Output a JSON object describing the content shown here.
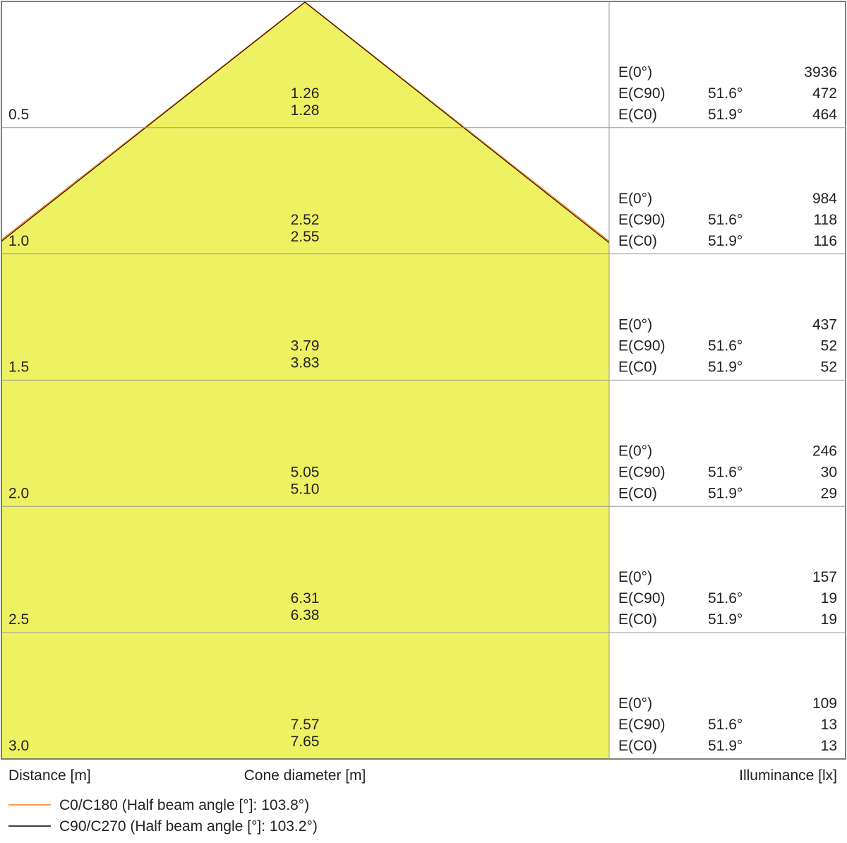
{
  "rows": [
    {
      "distance": "0.5",
      "diameters": [
        "1.26",
        "1.28"
      ],
      "lines": [
        [
          "E(0°)",
          "3936"
        ],
        [
          "E(C90)",
          "51.6°",
          "472"
        ],
        [
          "E(C0)",
          "51.9°",
          "464"
        ]
      ]
    },
    {
      "distance": "1.0",
      "diameters": [
        "2.52",
        "2.55"
      ],
      "lines": [
        [
          "E(0°)",
          "984"
        ],
        [
          "E(C90)",
          "51.6°",
          "118"
        ],
        [
          "E(C0)",
          "51.9°",
          "116"
        ]
      ]
    },
    {
      "distance": "1.5",
      "diameters": [
        "3.79",
        "3.83"
      ],
      "lines": [
        [
          "E(0°)",
          "437"
        ],
        [
          "E(C90)",
          "51.6°",
          "52"
        ],
        [
          "E(C0)",
          "51.9°",
          "52"
        ]
      ]
    },
    {
      "distance": "2.0",
      "diameters": [
        "5.05",
        "5.10"
      ],
      "lines": [
        [
          "E(0°)",
          "246"
        ],
        [
          "E(C90)",
          "51.6°",
          "30"
        ],
        [
          "E(C0)",
          "51.9°",
          "29"
        ]
      ]
    },
    {
      "distance": "2.5",
      "diameters": [
        "6.31",
        "6.38"
      ],
      "lines": [
        [
          "E(0°)",
          "157"
        ],
        [
          "E(C90)",
          "51.6°",
          "19"
        ],
        [
          "E(C0)",
          "51.9°",
          "19"
        ]
      ]
    },
    {
      "distance": "3.0",
      "diameters": [
        "7.57",
        "7.65"
      ],
      "lines": [
        [
          "E(0°)",
          "109"
        ],
        [
          "E(C90)",
          "51.6°",
          "13"
        ],
        [
          "E(C0)",
          "51.9°",
          "13"
        ]
      ]
    }
  ],
  "footer": {
    "distance_label": "Distance [m]",
    "diameter_label": "Cone diameter [m]",
    "illuminance_label": "Illuminance [lx]"
  },
  "legend": [
    {
      "name": "C0/C180 (Half beam angle [°]: 103.8°)",
      "color": "#f07f1a"
    },
    {
      "name": "C90/C270 (Half beam angle [°]: 103.2°)",
      "color": "#000000"
    }
  ]
}
